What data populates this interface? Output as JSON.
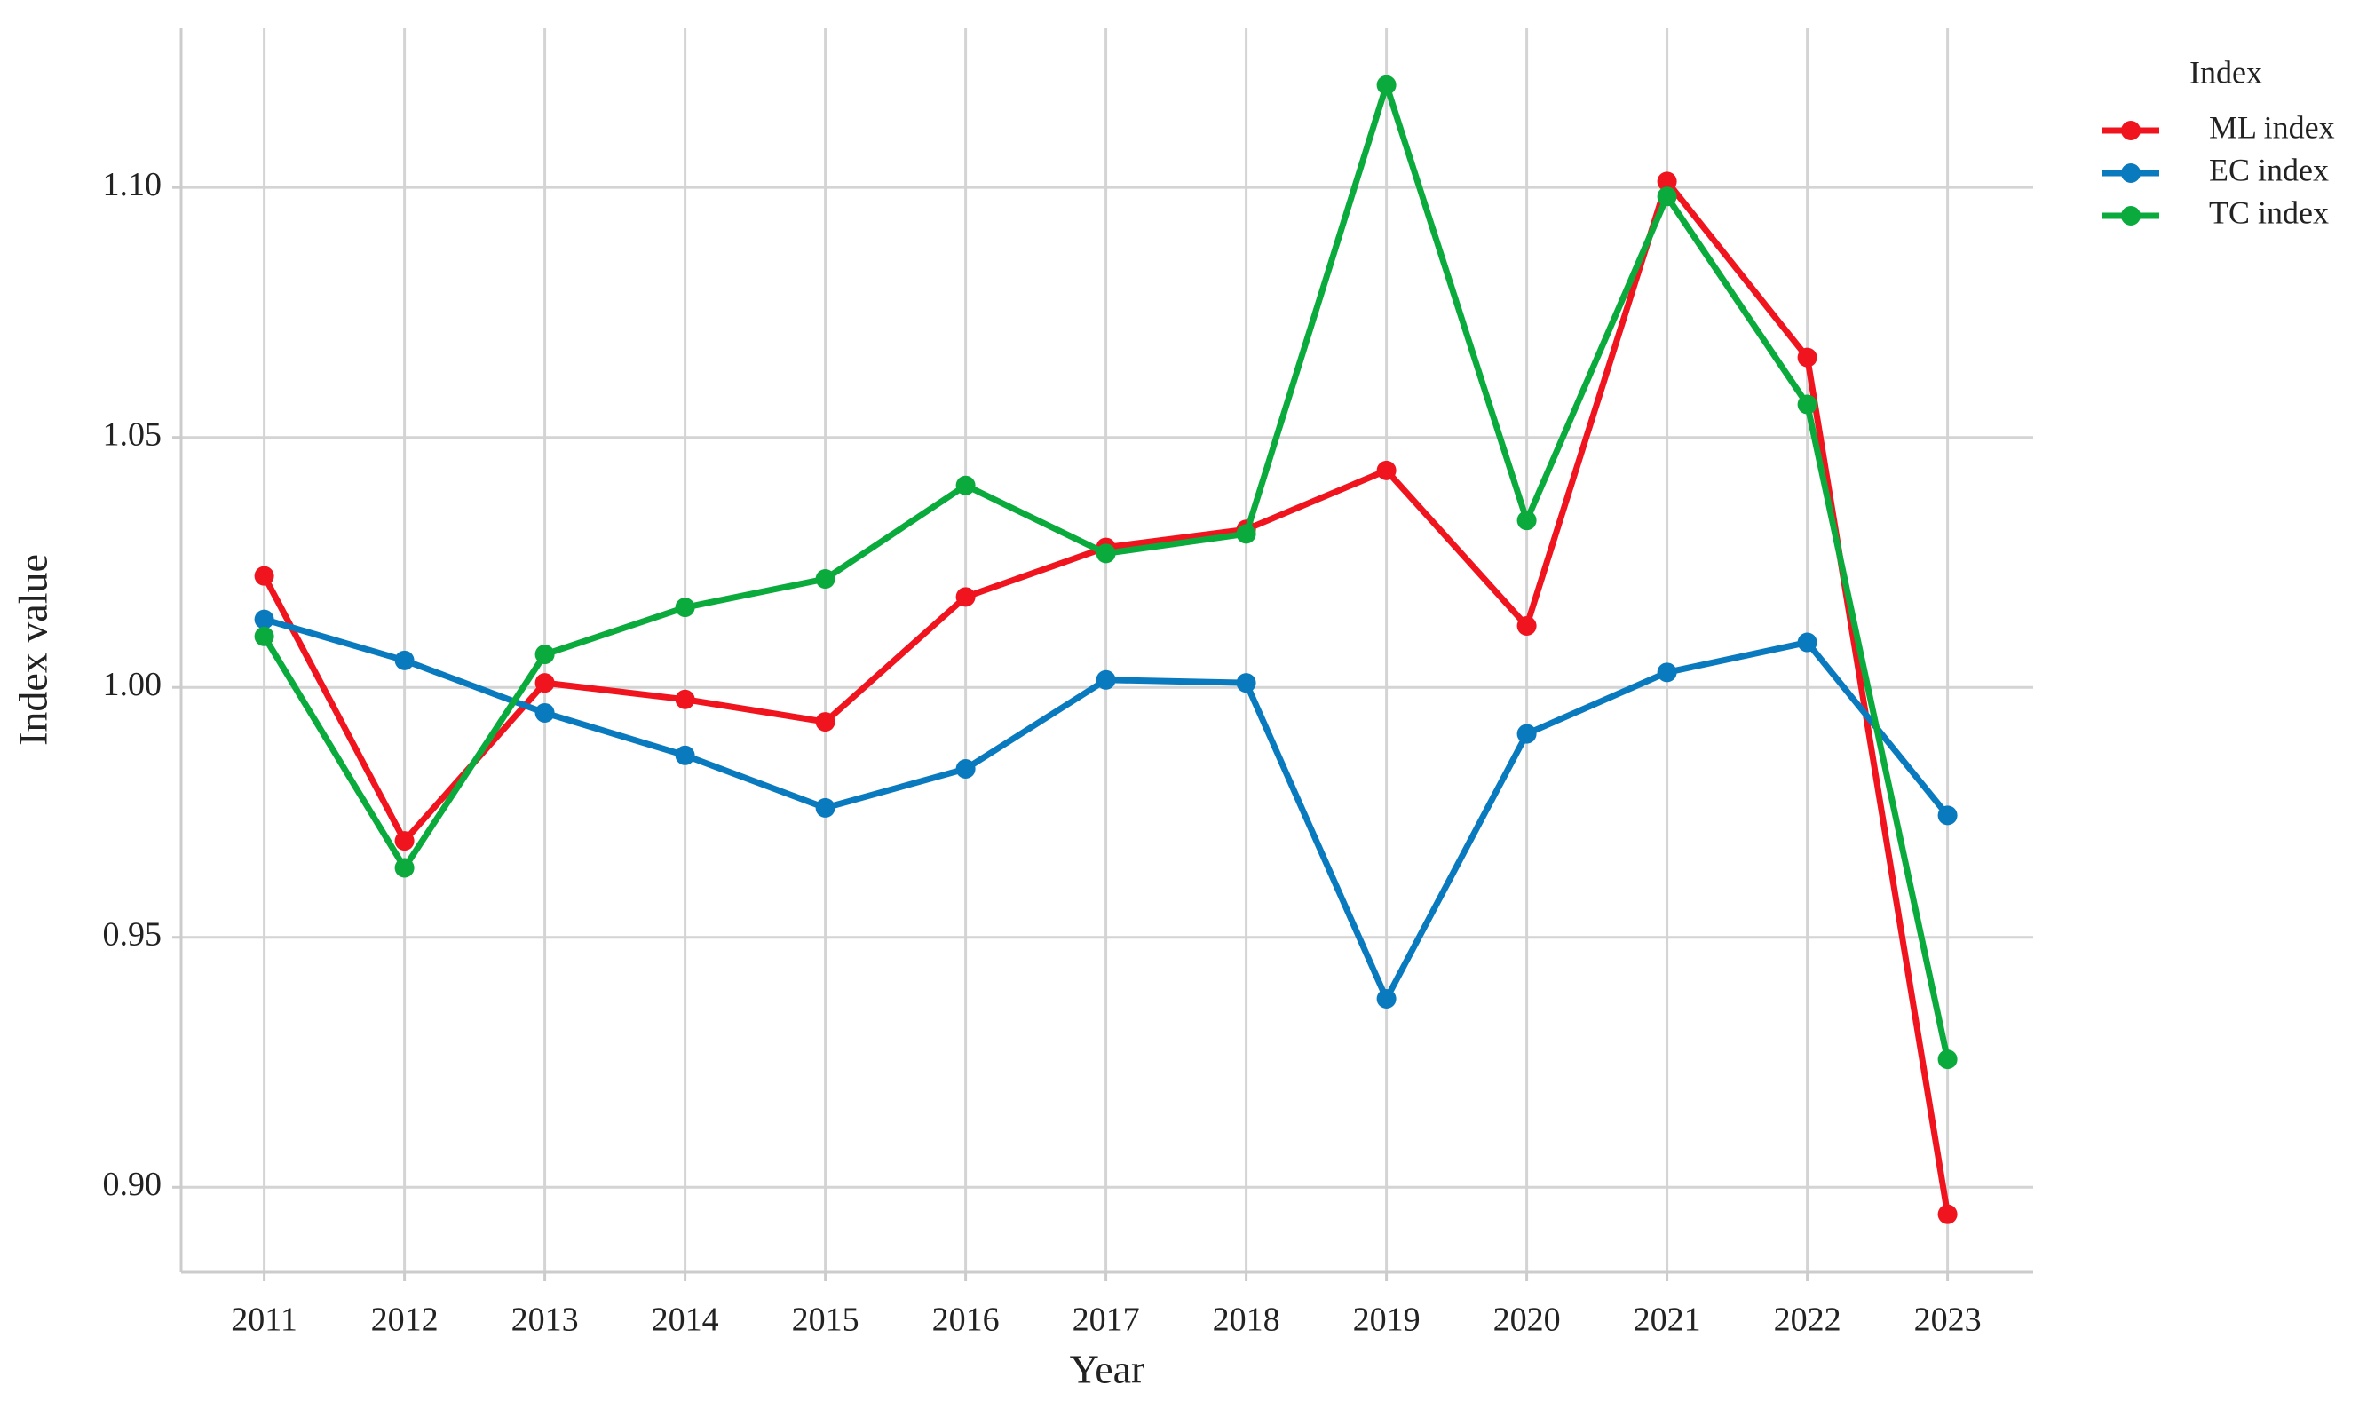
{
  "chart_data": {
    "type": "line",
    "x_label": "Year",
    "y_label": "Index value",
    "legend_title": "Index",
    "legend_position": "outside right top",
    "categories": [
      "2011",
      "2012",
      "2013",
      "2014",
      "2015",
      "2016",
      "2017",
      "2018",
      "2019",
      "2020",
      "2021",
      "2022",
      "2023"
    ],
    "series": [
      {
        "name": "ML index",
        "color": "#f0141e",
        "values": [
          1.0223,
          0.9693,
          1.0009,
          0.9976,
          0.9931,
          1.0181,
          1.028,
          1.0316,
          1.0434,
          1.0123,
          1.1012,
          1.066,
          0.8946
        ]
      },
      {
        "name": "EC index",
        "color": "#0a7abf",
        "values": [
          1.0136,
          1.0054,
          0.9949,
          0.9864,
          0.9759,
          0.9837,
          1.0015,
          1.0009,
          0.9377,
          0.9907,
          1.003,
          1.009,
          0.9744
        ]
      },
      {
        "name": "TC index",
        "color": "#0aaa3c",
        "values": [
          1.0102,
          0.9639,
          1.0066,
          1.016,
          1.0217,
          1.0404,
          1.0268,
          1.0307,
          1.1205,
          1.0334,
          1.0982,
          1.0566,
          0.9256
        ]
      }
    ],
    "ylim": [
      0.883,
      1.132
    ],
    "yticks": [
      {
        "value": 0.9,
        "label": "0.90"
      },
      {
        "value": 0.95,
        "label": "0.95"
      },
      {
        "value": 1.0,
        "label": "1.00"
      },
      {
        "value": 1.05,
        "label": "1.05"
      },
      {
        "value": 1.1,
        "label": "1.10"
      }
    ],
    "grid": true
  }
}
